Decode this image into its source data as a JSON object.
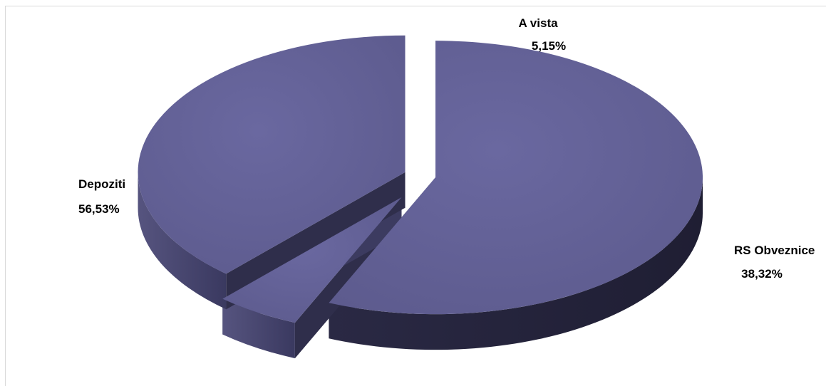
{
  "chart_data": {
    "type": "pie",
    "style": "3d-exploded",
    "slices": [
      {
        "label": "Depoziti",
        "value": 56.53,
        "text": "56,53%"
      },
      {
        "label": "A vista",
        "value": 5.15,
        "text": "5,15%"
      },
      {
        "label": "RS Obveznice",
        "value": 38.32,
        "text": "38,32%"
      }
    ],
    "colors": {
      "top": "#636195",
      "side_light": "#4a4873",
      "side_dark": "#25243d"
    },
    "legend": "none"
  }
}
